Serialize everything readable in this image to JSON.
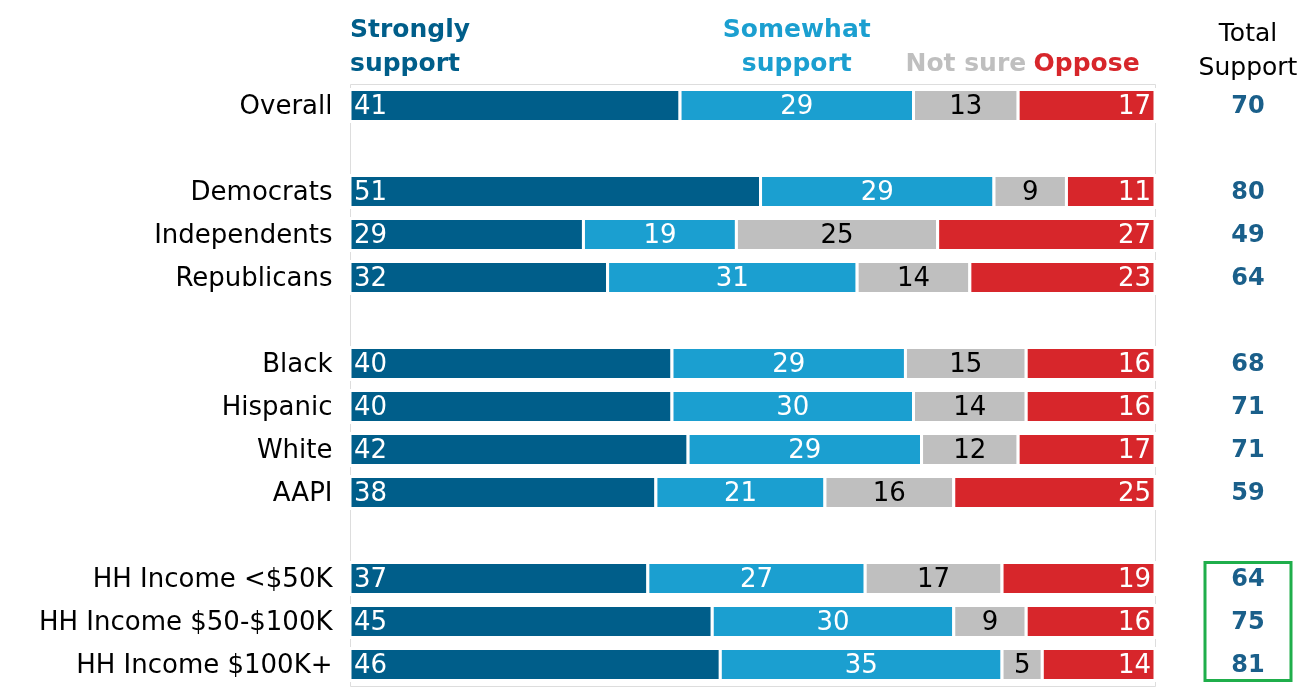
{
  "chart_data": {
    "type": "bar",
    "orientation": "horizontal",
    "stacked": true,
    "data_labels": true,
    "legend": "top",
    "grid": false,
    "tick_labels": "y",
    "categories": [
      "Overall",
      null,
      "Democrats",
      "Independents",
      "Republicans",
      null,
      "Black",
      "Hispanic",
      "White",
      "AAPI",
      null,
      "HH Income <$50K",
      "HH Income $50-$100K",
      "HH Income $100K+"
    ],
    "series": [
      {
        "name": "Strongly support",
        "color": "#005e8a",
        "values": [
          41,
          null,
          51,
          29,
          32,
          null,
          40,
          40,
          42,
          38,
          null,
          37,
          45,
          46
        ]
      },
      {
        "name": "Somewhat support",
        "color": "#1b9fd0",
        "values": [
          29,
          null,
          29,
          19,
          31,
          null,
          29,
          30,
          29,
          21,
          null,
          27,
          30,
          35
        ]
      },
      {
        "name": "Not sure",
        "color": "#bfbfbf",
        "values": [
          13,
          null,
          9,
          25,
          14,
          null,
          15,
          14,
          12,
          16,
          null,
          17,
          9,
          5
        ]
      },
      {
        "name": "Oppose",
        "color": "#d7262b",
        "values": [
          17,
          null,
          11,
          27,
          23,
          null,
          16,
          16,
          17,
          25,
          null,
          19,
          16,
          14
        ]
      }
    ],
    "annotations": [
      "Total Support",
      "70",
      "80",
      "49",
      "64",
      "68",
      "71",
      "71",
      "59",
      "64",
      "75",
      "81"
    ]
  }
}
